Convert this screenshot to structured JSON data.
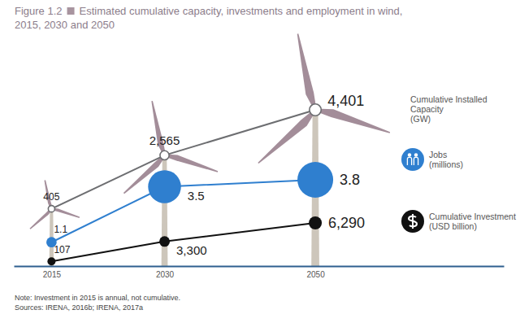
{
  "chart_data": {
    "type": "line",
    "title": "Estimated cumulative capacity, investments and employment in wind, 2015, 2030 and 2050",
    "annotations": [
      "Figure 1.2",
      "Note: Investment in 2015 is annual, not cumulative.",
      "Sources: IRENA, 2016b; IRENA, 2017a"
    ],
    "x": [
      2015,
      2030,
      2050
    ],
    "xlim": [
      2010,
      2075
    ],
    "xticks": [
      2015,
      2030,
      2050
    ],
    "tick_labels": "x",
    "data_labels": true,
    "series": [
      {
        "name": "Cumulative Installed Capacity (GW)",
        "color": "#6d6e71",
        "marker": "circle-open",
        "line_style": "solid",
        "values": [
          405,
          2565,
          4401
        ],
        "value_labels": [
          "405",
          "2,565",
          "4,401"
        ]
      },
      {
        "name": "Jobs (millions)",
        "color": "#2f7fcf",
        "marker": "bubble",
        "line_style": "solid",
        "values": [
          1.1,
          3.5,
          3.8
        ]
      },
      {
        "name": "Cumulative Investment (USD billion)",
        "color": "#111111",
        "marker": "circle",
        "line_style": "solid",
        "values": [
          107,
          3300,
          6290
        ],
        "value_labels": [
          "107",
          "3,300",
          "6,290"
        ]
      }
    ]
  }
}
